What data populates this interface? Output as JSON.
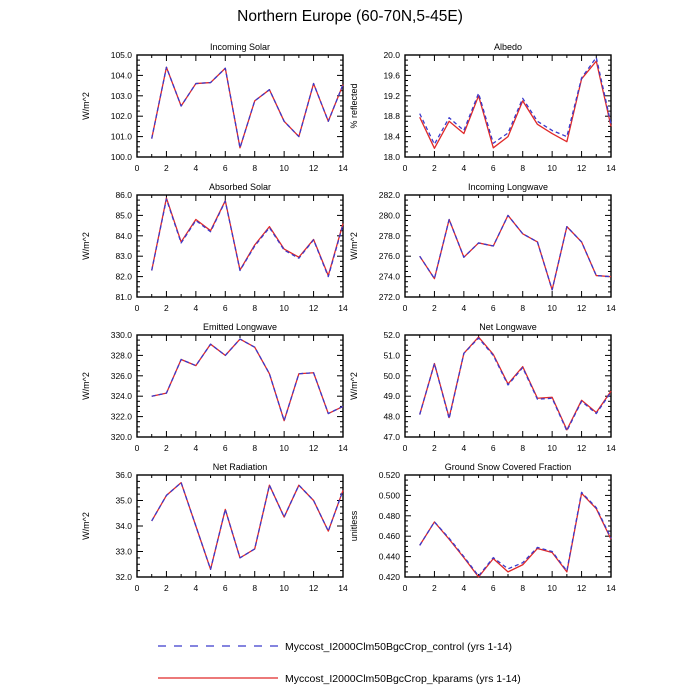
{
  "title": "Northern Europe (60-70N,5-45E)",
  "legend": {
    "entries": [
      {
        "label": "Myccost_I2000Clm50BgcCrop_control (yrs 1-14)",
        "color": "#3a3acc",
        "dashed": true
      },
      {
        "label": "Myccost_I2000Clm50BgcCrop_kparams (yrs 1-14)",
        "color": "#e02929",
        "dashed": false
      }
    ]
  },
  "chart_data": [
    {
      "type": "line",
      "title": "Incoming Solar",
      "ylabel": "W/m^2",
      "x": [
        1,
        2,
        3,
        4,
        5,
        6,
        7,
        8,
        9,
        10,
        11,
        12,
        13,
        14
      ],
      "xlim": [
        0,
        14
      ],
      "xtick_step": 2,
      "ylim": [
        100.0,
        105.0
      ],
      "ytick_step": 1.0,
      "decimals": 1,
      "series": [
        {
          "name": "control",
          "values": [
            100.9,
            104.4,
            102.5,
            103.6,
            103.65,
            104.35,
            100.45,
            102.75,
            103.3,
            101.75,
            101.0,
            103.6,
            101.75,
            103.55
          ]
        },
        {
          "name": "kparams",
          "values": [
            100.9,
            104.4,
            102.5,
            103.6,
            103.65,
            104.35,
            100.45,
            102.75,
            103.3,
            101.75,
            101.0,
            103.6,
            101.75,
            103.55
          ]
        }
      ]
    },
    {
      "type": "line",
      "title": "Albedo",
      "ylabel": "% reflected",
      "x": [
        1,
        2,
        3,
        4,
        5,
        6,
        7,
        8,
        9,
        10,
        11,
        12,
        13,
        14
      ],
      "xlim": [
        0,
        14
      ],
      "xtick_step": 2,
      "ylim": [
        18.0,
        20.0
      ],
      "ytick_step": 0.4,
      "decimals": 1,
      "series": [
        {
          "name": "control",
          "values": [
            18.85,
            18.25,
            18.77,
            18.52,
            19.25,
            18.27,
            18.47,
            19.15,
            18.7,
            18.52,
            18.4,
            19.55,
            19.95,
            18.65
          ]
        },
        {
          "name": "kparams",
          "values": [
            18.78,
            18.17,
            18.7,
            18.46,
            19.2,
            18.18,
            18.4,
            19.1,
            18.64,
            18.46,
            18.3,
            19.53,
            19.88,
            18.6
          ]
        }
      ]
    },
    {
      "type": "line",
      "title": "Absorbed Solar",
      "ylabel": "W/m^2",
      "x": [
        1,
        2,
        3,
        4,
        5,
        6,
        7,
        8,
        9,
        10,
        11,
        12,
        13,
        14
      ],
      "xlim": [
        0,
        14
      ],
      "xtick_step": 2,
      "ylim": [
        81.0,
        86.0
      ],
      "ytick_step": 1.0,
      "decimals": 1,
      "series": [
        {
          "name": "control",
          "values": [
            82.3,
            85.8,
            83.65,
            84.75,
            84.2,
            85.7,
            82.3,
            83.5,
            84.4,
            83.3,
            82.9,
            83.8,
            82.0,
            84.55
          ]
        },
        {
          "name": "kparams",
          "values": [
            82.3,
            85.85,
            83.7,
            84.8,
            84.25,
            85.72,
            82.32,
            83.55,
            84.45,
            83.35,
            82.95,
            83.82,
            82.05,
            84.6
          ]
        }
      ]
    },
    {
      "type": "line",
      "title": "Incoming Longwave",
      "ylabel": "W/m^2",
      "x": [
        1,
        2,
        3,
        4,
        5,
        6,
        7,
        8,
        9,
        10,
        11,
        12,
        13,
        14
      ],
      "xlim": [
        0,
        14
      ],
      "xtick_step": 2,
      "ylim": [
        272.0,
        282.0
      ],
      "ytick_step": 2.0,
      "decimals": 1,
      "series": [
        {
          "name": "control",
          "values": [
            276.0,
            273.8,
            279.6,
            275.9,
            277.3,
            277.0,
            280.0,
            278.2,
            277.4,
            272.7,
            278.9,
            277.4,
            274.1,
            274.0
          ]
        },
        {
          "name": "kparams",
          "values": [
            276.0,
            273.8,
            279.6,
            275.9,
            277.3,
            277.0,
            280.0,
            278.2,
            277.4,
            272.7,
            278.9,
            277.4,
            274.1,
            274.0
          ]
        }
      ]
    },
    {
      "type": "line",
      "title": "Emitted Longwave",
      "ylabel": "W/m^2",
      "x": [
        1,
        2,
        3,
        4,
        5,
        6,
        7,
        8,
        9,
        10,
        11,
        12,
        13,
        14
      ],
      "xlim": [
        0,
        14
      ],
      "xtick_step": 2,
      "ylim": [
        320.0,
        330.0
      ],
      "ytick_step": 2.0,
      "decimals": 1,
      "series": [
        {
          "name": "control",
          "values": [
            324.0,
            324.3,
            327.6,
            327.0,
            329.1,
            328.0,
            329.6,
            328.8,
            326.2,
            321.6,
            326.2,
            326.3,
            322.3,
            323.0
          ]
        },
        {
          "name": "kparams",
          "values": [
            324.0,
            324.3,
            327.6,
            327.0,
            329.1,
            328.0,
            329.6,
            328.8,
            326.2,
            321.6,
            326.2,
            326.3,
            322.3,
            323.0
          ]
        }
      ]
    },
    {
      "type": "line",
      "title": "Net Longwave",
      "ylabel": "W/m^2",
      "x": [
        1,
        2,
        3,
        4,
        5,
        6,
        7,
        8,
        9,
        10,
        11,
        12,
        13,
        14
      ],
      "xlim": [
        0,
        14
      ],
      "xtick_step": 2,
      "ylim": [
        47.0,
        52.0
      ],
      "ytick_step": 1.0,
      "decimals": 1,
      "series": [
        {
          "name": "control",
          "values": [
            48.1,
            50.6,
            47.9,
            51.1,
            51.85,
            51.0,
            49.55,
            50.4,
            48.85,
            48.9,
            47.3,
            48.75,
            48.15,
            49.2
          ]
        },
        {
          "name": "kparams",
          "values": [
            48.1,
            50.6,
            47.95,
            51.1,
            51.9,
            51.05,
            49.6,
            50.45,
            48.9,
            48.95,
            47.35,
            48.8,
            48.2,
            49.25
          ]
        }
      ]
    },
    {
      "type": "line",
      "title": "Net Radiation",
      "ylabel": "W/m^2",
      "x": [
        1,
        2,
        3,
        4,
        5,
        6,
        7,
        8,
        9,
        10,
        11,
        12,
        13,
        14
      ],
      "xlim": [
        0,
        14
      ],
      "xtick_step": 2,
      "ylim": [
        32.0,
        36.0
      ],
      "ytick_step": 1.0,
      "decimals": 1,
      "series": [
        {
          "name": "control",
          "values": [
            34.2,
            35.2,
            35.7,
            34.0,
            32.3,
            34.65,
            32.75,
            33.1,
            35.6,
            34.35,
            35.6,
            35.0,
            33.8,
            35.4
          ]
        },
        {
          "name": "kparams",
          "values": [
            34.2,
            35.2,
            35.7,
            34.0,
            32.3,
            34.65,
            32.75,
            33.1,
            35.6,
            34.35,
            35.6,
            35.0,
            33.8,
            35.4
          ]
        }
      ]
    },
    {
      "type": "line",
      "title": "Ground Snow Covered Fraction",
      "ylabel": "unitless",
      "x": [
        1,
        2,
        3,
        4,
        5,
        6,
        7,
        8,
        9,
        10,
        11,
        12,
        13,
        14
      ],
      "xlim": [
        0,
        14
      ],
      "xtick_step": 2,
      "ylim": [
        0.42,
        0.52
      ],
      "ytick_step": 0.02,
      "decimals": 3,
      "series": [
        {
          "name": "control",
          "values": [
            0.451,
            0.474,
            0.458,
            0.44,
            0.421,
            0.439,
            0.428,
            0.434,
            0.449,
            0.445,
            0.426,
            0.503,
            0.488,
            0.458
          ]
        },
        {
          "name": "kparams",
          "values": [
            0.451,
            0.474,
            0.457,
            0.439,
            0.42,
            0.438,
            0.425,
            0.432,
            0.448,
            0.444,
            0.425,
            0.502,
            0.487,
            0.457
          ]
        }
      ]
    }
  ]
}
